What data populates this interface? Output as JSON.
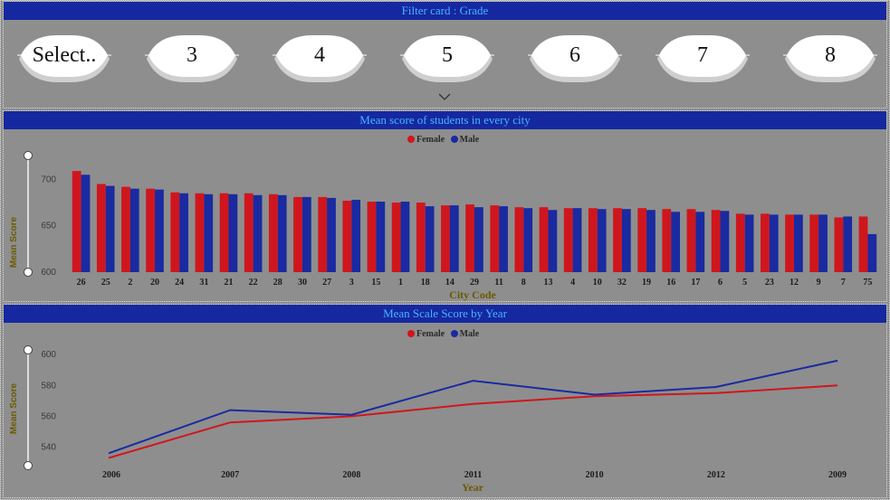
{
  "filter_card": {
    "title": "Filter card : Grade",
    "options": [
      "Select..",
      "3",
      "4",
      "5",
      "6",
      "7",
      "8"
    ]
  },
  "city_chart": {
    "title": "Mean score of students in every city",
    "legend": [
      "Female",
      "Male"
    ],
    "colors": {
      "female": "#d0161d",
      "male": "#1a2aa0"
    },
    "ylabel": "Mean Score",
    "xlabel": "City Code"
  },
  "year_chart": {
    "title": "Mean Scale Score by Year",
    "legend": [
      "Female",
      "Male"
    ],
    "ylabel": "Mean Score",
    "xlabel": "Year"
  },
  "chart_data": [
    {
      "type": "bar",
      "categories": [
        "26",
        "25",
        "2",
        "20",
        "24",
        "31",
        "21",
        "22",
        "28",
        "30",
        "27",
        "3",
        "15",
        "1",
        "18",
        "14",
        "29",
        "11",
        "8",
        "13",
        "4",
        "10",
        "32",
        "19",
        "16",
        "17",
        "6",
        "5",
        "23",
        "12",
        "9",
        "7",
        "75"
      ],
      "series": [
        {
          "name": "Female",
          "values": [
            709,
            695,
            692,
            690,
            686,
            685,
            685,
            685,
            684,
            681,
            681,
            677,
            676,
            675,
            675,
            672,
            673,
            672,
            670,
            670,
            669,
            669,
            669,
            669,
            668,
            668,
            667,
            663,
            663,
            662,
            662,
            659,
            660
          ]
        },
        {
          "name": "Male",
          "values": [
            705,
            693,
            690,
            689,
            685,
            684,
            684,
            683,
            683,
            681,
            680,
            678,
            676,
            676,
            671,
            672,
            670,
            671,
            669,
            667,
            669,
            668,
            668,
            667,
            665,
            665,
            666,
            662,
            662,
            662,
            662,
            660,
            641
          ]
        }
      ],
      "title": "Mean score of students in every city",
      "xlabel": "City Code",
      "ylabel": "Mean Score",
      "yticks": [
        600,
        650,
        700
      ],
      "ylim": [
        600,
        715
      ],
      "legend": "top-center"
    },
    {
      "type": "line",
      "categories": [
        "2006",
        "2007",
        "2008",
        "2011",
        "2010",
        "2012",
        "2009"
      ],
      "series": [
        {
          "name": "Female",
          "values": [
            533,
            556,
            560,
            568,
            573,
            575,
            580
          ]
        },
        {
          "name": "Male",
          "values": [
            536,
            564,
            561,
            583,
            574,
            579,
            596
          ]
        }
      ],
      "title": "Mean Scale Score by Year",
      "xlabel": "Year",
      "ylabel": "Mean Score",
      "yticks": [
        540,
        560,
        580,
        600
      ],
      "ylim": [
        528,
        603
      ],
      "legend": "top-center"
    }
  ]
}
